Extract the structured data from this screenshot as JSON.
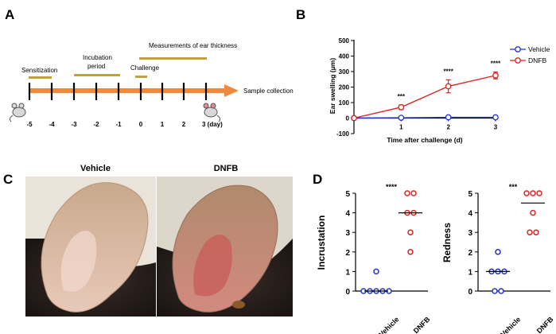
{
  "panels": {
    "a": "A",
    "b": "B",
    "c": "C",
    "d": "D"
  },
  "timeline": {
    "phases": [
      "Sensitization",
      "Incubation",
      "period",
      "Challenge",
      "Measurements of ear thickness"
    ],
    "end_label": "Sample collection",
    "days": [
      "-5",
      "-4",
      "-3",
      "-2",
      "-1",
      "0",
      "1",
      "2",
      "3 (day)"
    ],
    "colors": {
      "arrow": "#ef8a3c",
      "phase_bar": "#c2a13a"
    }
  },
  "chart_data": [
    {
      "type": "line",
      "title": "",
      "xlabel": "Time after challenge (d)",
      "ylabel": "Ear swelling (μm)",
      "x": [
        0,
        1,
        2,
        3
      ],
      "xlim": [
        0,
        3
      ],
      "ylim": [
        -100,
        500
      ],
      "yticks": [
        "-100",
        "0",
        "100",
        "200",
        "300",
        "400",
        "500"
      ],
      "xticks": [
        "0",
        "1",
        "2",
        "3"
      ],
      "series": [
        {
          "name": "Vehicle",
          "values": [
            0,
            2,
            5,
            5
          ],
          "errors": [
            0,
            5,
            5,
            6
          ],
          "color": "#2233cc"
        },
        {
          "name": "DNFB",
          "values": [
            0,
            70,
            205,
            275
          ],
          "errors": [
            0,
            15,
            42,
            22
          ],
          "color": "#dd2222"
        }
      ],
      "significance": [
        "***",
        "****",
        "****"
      ],
      "legend": "top-right"
    },
    {
      "type": "scatter",
      "ylabel": "Incrustation",
      "ylim": [
        0,
        5
      ],
      "yticks": [
        "0",
        "1",
        "2",
        "3",
        "4",
        "5"
      ],
      "categories": [
        "Vehicle",
        "DNFB"
      ],
      "series": [
        {
          "name": "Vehicle",
          "values": [
            0,
            0,
            0,
            0,
            0,
            1
          ],
          "median": 0,
          "color": "#2233cc"
        },
        {
          "name": "DNFB",
          "values": [
            5,
            5,
            4,
            4,
            3,
            2
          ],
          "median": 4,
          "color": "#dd2222"
        }
      ],
      "significance": "****"
    },
    {
      "type": "scatter",
      "ylabel": "Redness",
      "ylim": [
        0,
        5
      ],
      "yticks": [
        "0",
        "1",
        "2",
        "3",
        "4",
        "5"
      ],
      "categories": [
        "Vehicle",
        "DNFB"
      ],
      "series": [
        {
          "name": "Vehicle",
          "values": [
            2,
            1,
            1,
            1,
            0,
            0
          ],
          "median": 1,
          "color": "#2233cc"
        },
        {
          "name": "DNFB",
          "values": [
            5,
            5,
            5,
            4,
            3,
            3
          ],
          "median": 4.5,
          "color": "#dd2222"
        }
      ],
      "significance": "***"
    }
  ],
  "photos": {
    "left": "Vehicle",
    "right": "DNFB"
  }
}
